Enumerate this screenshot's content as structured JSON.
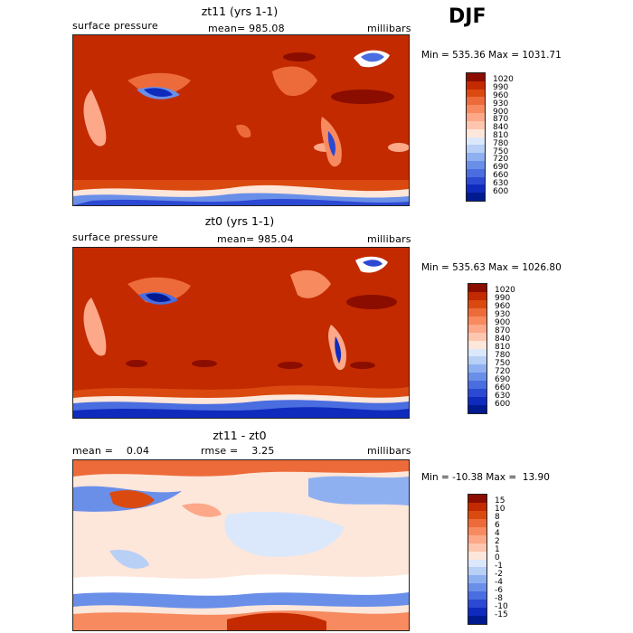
{
  "season": "DJF",
  "panels": [
    {
      "title": "zt11 (yrs 1-1)",
      "left_label": "surface pressure",
      "center_label": "mean= 985.08",
      "units": "millibars",
      "minmax": "Min = 535.36 Max = 1031.71",
      "colorbar": {
        "labels": [
          "1020",
          "990",
          "960",
          "930",
          "900",
          "870",
          "840",
          "810",
          "780",
          "750",
          "720",
          "690",
          "660",
          "630",
          "600"
        ],
        "colors": [
          "#8b0d00",
          "#c32a00",
          "#da4a10",
          "#ed6b3a",
          "#f78a5e",
          "#fca889",
          "#fec6ae",
          "#fde6da",
          "#dbe8fb",
          "#b8cff6",
          "#8fb0f0",
          "#6a8fe9",
          "#4a6de0",
          "#2c49d3",
          "#0f2bbd",
          "#001a8f"
        ]
      }
    },
    {
      "title": "zt0 (yrs 1-1)",
      "left_label": "surface pressure",
      "center_label": "mean= 985.04",
      "units": "millibars",
      "minmax": "Min = 535.63 Max = 1026.80",
      "colorbar": {
        "labels": [
          "1020",
          "990",
          "960",
          "930",
          "900",
          "870",
          "840",
          "810",
          "780",
          "750",
          "720",
          "690",
          "660",
          "630",
          "600"
        ],
        "colors": [
          "#8b0d00",
          "#c32a00",
          "#da4a10",
          "#ed6b3a",
          "#f78a5e",
          "#fca889",
          "#fec6ae",
          "#fde6da",
          "#dbe8fb",
          "#b8cff6",
          "#8fb0f0",
          "#6a8fe9",
          "#4a6de0",
          "#2c49d3",
          "#0f2bbd",
          "#001a8f"
        ]
      }
    },
    {
      "title": "zt11 - zt0",
      "left_label": "mean =    0.04",
      "center_label": "rmse =    3.25",
      "units": "millibars",
      "minmax": "Min = -10.38 Max =  13.90",
      "colorbar": {
        "labels": [
          "15",
          "10",
          "8",
          "6",
          "4",
          "2",
          "1",
          "0",
          "-1",
          "-2",
          "-4",
          "-6",
          "-8",
          "-10",
          "-15"
        ],
        "colors": [
          "#8b0d00",
          "#c32a00",
          "#da4a10",
          "#ed6b3a",
          "#f78a5e",
          "#fca889",
          "#fec6ae",
          "#fde6da",
          "#dbe8fb",
          "#b8cff6",
          "#8fb0f0",
          "#6a8fe9",
          "#4a6de0",
          "#2c49d3",
          "#0f2bbd",
          "#001a8f"
        ]
      }
    }
  ]
}
